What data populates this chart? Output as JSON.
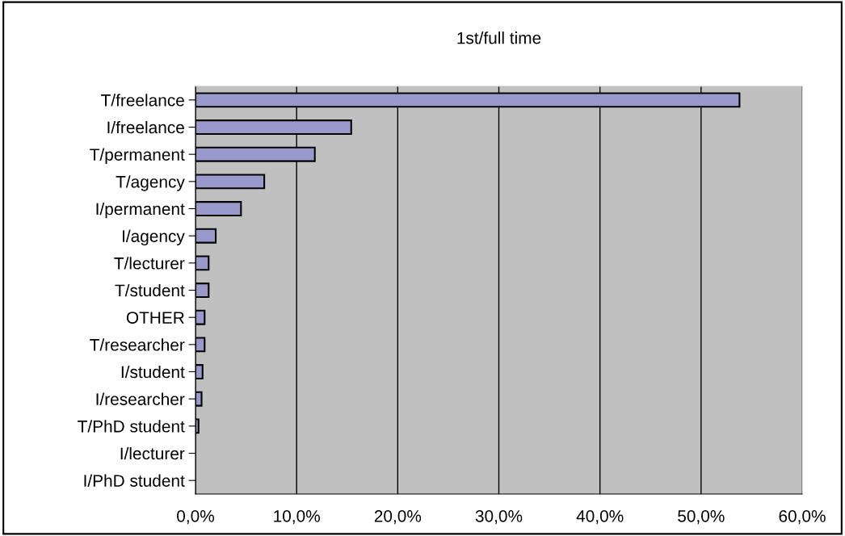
{
  "chart_data": {
    "type": "bar",
    "orientation": "horizontal",
    "title": "1st/full time",
    "categories": [
      "T/freelance",
      "I/freelance",
      "T/permanent",
      "T/agency",
      "I/permanent",
      "I/agency",
      "T/lecturer",
      "T/student",
      "OTHER",
      "T/researcher",
      "I/student",
      "I/researcher",
      "T/PhD student",
      "I/lecturer",
      "I/PhD student"
    ],
    "values": [
      53.8,
      15.4,
      11.8,
      6.8,
      4.5,
      2.0,
      1.3,
      1.3,
      0.9,
      0.9,
      0.7,
      0.6,
      0.3,
      0,
      0
    ],
    "color": "#9999cc",
    "xlim": [
      0,
      60
    ],
    "xticks": [
      {
        "value": 0,
        "label": "0,0%"
      },
      {
        "value": 10,
        "label": "10,0%"
      },
      {
        "value": 20,
        "label": "20,0%"
      },
      {
        "value": 30,
        "label": "30,0%"
      },
      {
        "value": 40,
        "label": "40,0%"
      },
      {
        "value": 50,
        "label": "50,0%"
      },
      {
        "value": 60,
        "label": "60,0%"
      }
    ],
    "grid": "x",
    "legend": false
  }
}
